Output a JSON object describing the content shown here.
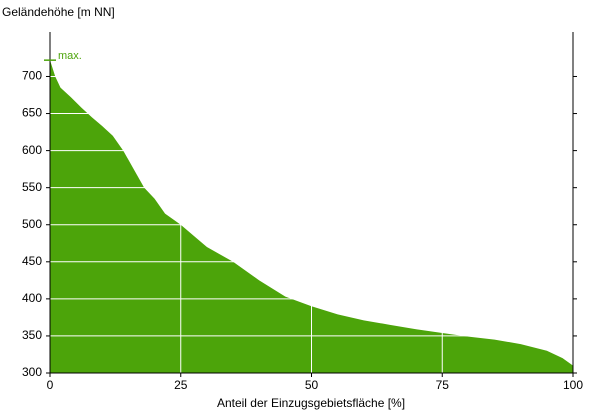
{
  "chart_data": {
    "type": "area",
    "y_label": "Geländehöhe [m NN]",
    "x_label": "Anteil der Einzugsgebietsfläche [%]",
    "annotation": {
      "text": "max.",
      "value": 722
    },
    "color": "#4ca40a",
    "x": [
      0,
      1,
      2,
      4,
      6,
      8,
      10,
      12,
      14,
      16,
      18,
      20,
      22,
      25,
      28,
      30,
      35,
      40,
      45,
      50,
      55,
      60,
      65,
      70,
      75,
      80,
      85,
      90,
      95,
      98,
      100
    ],
    "values": [
      722,
      700,
      685,
      672,
      658,
      645,
      633,
      620,
      600,
      575,
      550,
      535,
      515,
      500,
      482,
      470,
      450,
      425,
      403,
      390,
      379,
      371,
      365,
      359,
      354,
      349,
      345,
      339,
      330,
      320,
      310
    ],
    "xlim": [
      0,
      100
    ],
    "xticks": [
      0,
      25,
      50,
      75,
      100
    ],
    "ylim": [
      300,
      760
    ],
    "yticks": [
      300,
      350,
      400,
      450,
      500,
      550,
      600,
      650,
      700
    ],
    "grid": true
  }
}
